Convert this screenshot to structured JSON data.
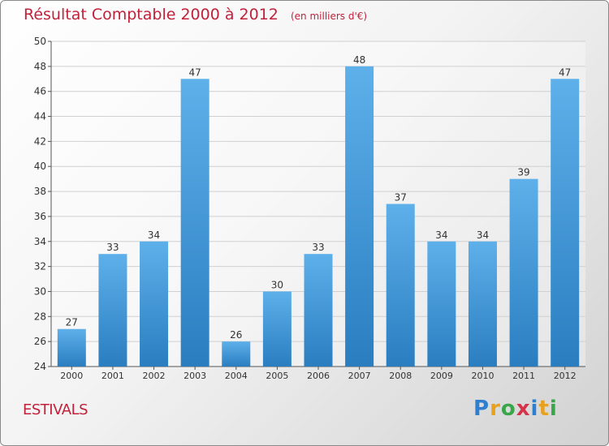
{
  "header": {
    "title": "Résultat Comptable 2000 à 2012",
    "subtitle": "(en milliers d'€)"
  },
  "footer": {
    "place": "ESTIVALS",
    "logo": "Proxiti",
    "logo_letters": [
      {
        "ch": "P",
        "color": "#2e7fd0"
      },
      {
        "ch": "r",
        "color": "#e8a11f"
      },
      {
        "ch": "o",
        "color": "#3aa64a"
      },
      {
        "ch": "x",
        "color": "#d6334a"
      },
      {
        "ch": "i",
        "color": "#2e7fd0"
      },
      {
        "ch": "t",
        "color": "#e8a11f"
      },
      {
        "ch": "i",
        "color": "#3aa64a"
      }
    ]
  },
  "colors": {
    "bar_light": "#5eb0ea",
    "bar_dark": "#2a7ec0",
    "title": "#c0223b",
    "axis": "#555555",
    "grid": "#d0d0d0"
  },
  "chart_data": {
    "type": "bar",
    "title": "Résultat Comptable 2000 à 2012",
    "subtitle": "(en milliers d'€)",
    "categories": [
      "2000",
      "2001",
      "2002",
      "2003",
      "2004",
      "2005",
      "2006",
      "2007",
      "2008",
      "2009",
      "2010",
      "2011",
      "2012"
    ],
    "values": [
      27,
      33,
      34,
      47,
      26,
      30,
      33,
      48,
      37,
      34,
      34,
      39,
      47
    ],
    "ylim": [
      24,
      50
    ],
    "yticks": [
      24,
      26,
      28,
      30,
      32,
      34,
      36,
      38,
      40,
      42,
      44,
      46,
      48,
      50
    ],
    "grid": true,
    "data_labels": true
  }
}
